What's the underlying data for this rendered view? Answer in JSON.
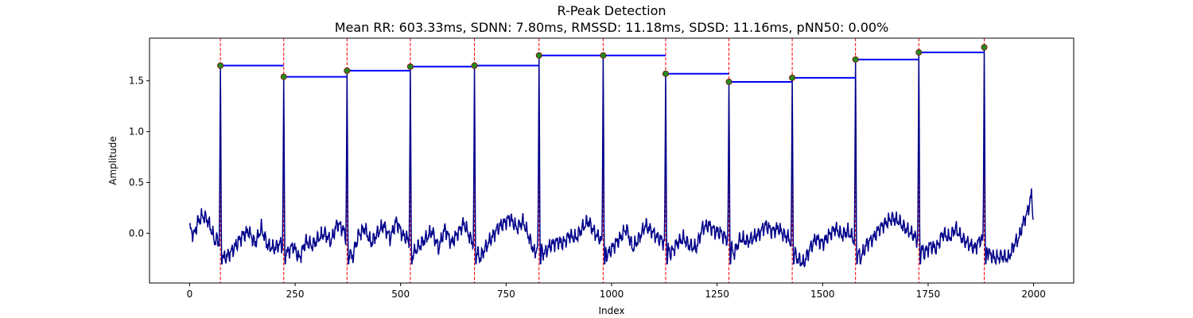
{
  "chart_data": {
    "type": "line",
    "title": "R-Peak Detection",
    "subtitle": "Mean RR: 603.33ms, SDNN: 7.80ms, RMSSD: 11.18ms, SDSD: 11.16ms, pNN50: 0.00%",
    "xlabel": "Index",
    "ylabel": "Amplitude",
    "xlim": [
      -95,
      2095
    ],
    "ylim": [
      -0.49,
      1.92
    ],
    "x_ticks": [
      0,
      250,
      500,
      750,
      1000,
      1250,
      1500,
      1750,
      2000
    ],
    "y_ticks": [
      0.0,
      0.5,
      1.0,
      1.5
    ],
    "grid": false,
    "colors": {
      "signal": "#00008b",
      "peaks": "#228b22",
      "peak_edge": "#8b0000",
      "vlines": "#ff0000",
      "rr_lines": "#0000ff"
    },
    "signal": {
      "n": 2000,
      "baseline_points": [
        [
          0,
          0.05
        ],
        [
          10,
          -0.02
        ],
        [
          20,
          0.12
        ],
        [
          30,
          0.17
        ],
        [
          40,
          0.15
        ],
        [
          50,
          0.05
        ],
        [
          60,
          -0.08
        ],
        [
          66,
          -0.05
        ],
        [
          82,
          -0.25
        ],
        [
          95,
          -0.2
        ],
        [
          110,
          -0.12
        ],
        [
          125,
          -0.02
        ],
        [
          140,
          0.02
        ],
        [
          155,
          -0.1
        ],
        [
          170,
          0.05
        ],
        [
          185,
          -0.12
        ],
        [
          200,
          -0.15
        ],
        [
          215,
          -0.1
        ],
        [
          230,
          -0.2
        ],
        [
          245,
          -0.12
        ],
        [
          260,
          -0.25
        ],
        [
          275,
          -0.08
        ],
        [
          290,
          -0.12
        ],
        [
          305,
          -0.05
        ],
        [
          320,
          0.0
        ],
        [
          335,
          -0.08
        ],
        [
          350,
          0.1
        ],
        [
          365,
          0.03
        ],
        [
          370,
          -0.05
        ],
        [
          385,
          -0.25
        ],
        [
          400,
          -0.02
        ],
        [
          415,
          0.05
        ],
        [
          430,
          -0.1
        ],
        [
          445,
          0.0
        ],
        [
          460,
          0.08
        ],
        [
          475,
          -0.05
        ],
        [
          490,
          0.12
        ],
        [
          505,
          -0.02
        ],
        [
          515,
          -0.05
        ],
        [
          530,
          -0.2
        ],
        [
          545,
          -0.12
        ],
        [
          560,
          -0.05
        ],
        [
          575,
          0.02
        ],
        [
          590,
          -0.15
        ],
        [
          605,
          0.05
        ],
        [
          620,
          -0.1
        ],
        [
          635,
          0.0
        ],
        [
          650,
          0.1
        ],
        [
          665,
          -0.05
        ],
        [
          672,
          -0.1
        ],
        [
          688,
          -0.25
        ],
        [
          700,
          -0.15
        ],
        [
          715,
          -0.05
        ],
        [
          730,
          0.05
        ],
        [
          745,
          0.1
        ],
        [
          760,
          0.15
        ],
        [
          775,
          0.05
        ],
        [
          790,
          0.12
        ],
        [
          805,
          -0.05
        ],
        [
          818,
          -0.2
        ],
        [
          825,
          -0.12
        ],
        [
          840,
          -0.2
        ],
        [
          855,
          -0.12
        ],
        [
          870,
          -0.08
        ],
        [
          885,
          -0.1
        ],
        [
          900,
          -0.02
        ],
        [
          915,
          -0.05
        ],
        [
          930,
          0.05
        ],
        [
          945,
          0.12
        ],
        [
          960,
          0.0
        ],
        [
          972,
          -0.05
        ],
        [
          990,
          -0.22
        ],
        [
          1005,
          -0.12
        ],
        [
          1020,
          -0.05
        ],
        [
          1035,
          0.05
        ],
        [
          1050,
          -0.15
        ],
        [
          1065,
          -0.05
        ],
        [
          1080,
          0.08
        ],
        [
          1095,
          0.02
        ],
        [
          1110,
          -0.05
        ],
        [
          1122,
          -0.08
        ],
        [
          1140,
          -0.2
        ],
        [
          1155,
          -0.1
        ],
        [
          1170,
          -0.05
        ],
        [
          1185,
          -0.12
        ],
        [
          1200,
          -0.15
        ],
        [
          1215,
          0.05
        ],
        [
          1230,
          0.08
        ],
        [
          1245,
          0.02
        ],
        [
          1260,
          0.0
        ],
        [
          1272,
          -0.05
        ],
        [
          1290,
          -0.2
        ],
        [
          1305,
          -0.05
        ],
        [
          1320,
          -0.08
        ],
        [
          1335,
          -0.05
        ],
        [
          1350,
          0.0
        ],
        [
          1365,
          0.08
        ],
        [
          1380,
          0.02
        ],
        [
          1395,
          0.05
        ],
        [
          1410,
          -0.02
        ],
        [
          1420,
          -0.05
        ],
        [
          1440,
          -0.25
        ],
        [
          1455,
          -0.3
        ],
        [
          1470,
          -0.15
        ],
        [
          1485,
          -0.05
        ],
        [
          1500,
          -0.1
        ],
        [
          1515,
          -0.02
        ],
        [
          1530,
          0.05
        ],
        [
          1545,
          -0.02
        ],
        [
          1560,
          0.02
        ],
        [
          1572,
          -0.05
        ],
        [
          1590,
          -0.25
        ],
        [
          1605,
          -0.1
        ],
        [
          1620,
          -0.05
        ],
        [
          1635,
          0.05
        ],
        [
          1650,
          0.1
        ],
        [
          1665,
          0.15
        ],
        [
          1680,
          0.12
        ],
        [
          1695,
          0.05
        ],
        [
          1710,
          0.0
        ],
        [
          1722,
          -0.05
        ],
        [
          1740,
          -0.2
        ],
        [
          1755,
          -0.12
        ],
        [
          1770,
          -0.15
        ],
        [
          1785,
          0.0
        ],
        [
          1800,
          -0.05
        ],
        [
          1815,
          0.05
        ],
        [
          1830,
          -0.05
        ],
        [
          1845,
          -0.1
        ],
        [
          1860,
          -0.15
        ],
        [
          1875,
          -0.05
        ],
        [
          1895,
          -0.2
        ],
        [
          1910,
          -0.25
        ],
        [
          1925,
          -0.22
        ],
        [
          1940,
          -0.25
        ],
        [
          1955,
          -0.1
        ],
        [
          1965,
          -0.05
        ],
        [
          1975,
          0.1
        ],
        [
          1985,
          0.2
        ],
        [
          1995,
          0.38
        ],
        [
          2000,
          0.12
        ]
      ]
    },
    "peaks": [
      {
        "index": 73,
        "amplitude": 1.65
      },
      {
        "index": 223,
        "amplitude": 1.54
      },
      {
        "index": 373,
        "amplitude": 1.6
      },
      {
        "index": 523,
        "amplitude": 1.64
      },
      {
        "index": 675,
        "amplitude": 1.65
      },
      {
        "index": 828,
        "amplitude": 1.75
      },
      {
        "index": 980,
        "amplitude": 1.75
      },
      {
        "index": 1128,
        "amplitude": 1.57
      },
      {
        "index": 1278,
        "amplitude": 1.49
      },
      {
        "index": 1428,
        "amplitude": 1.53
      },
      {
        "index": 1578,
        "amplitude": 1.71
      },
      {
        "index": 1728,
        "amplitude": 1.78
      },
      {
        "index": 1883,
        "amplitude": 1.83
      }
    ]
  }
}
